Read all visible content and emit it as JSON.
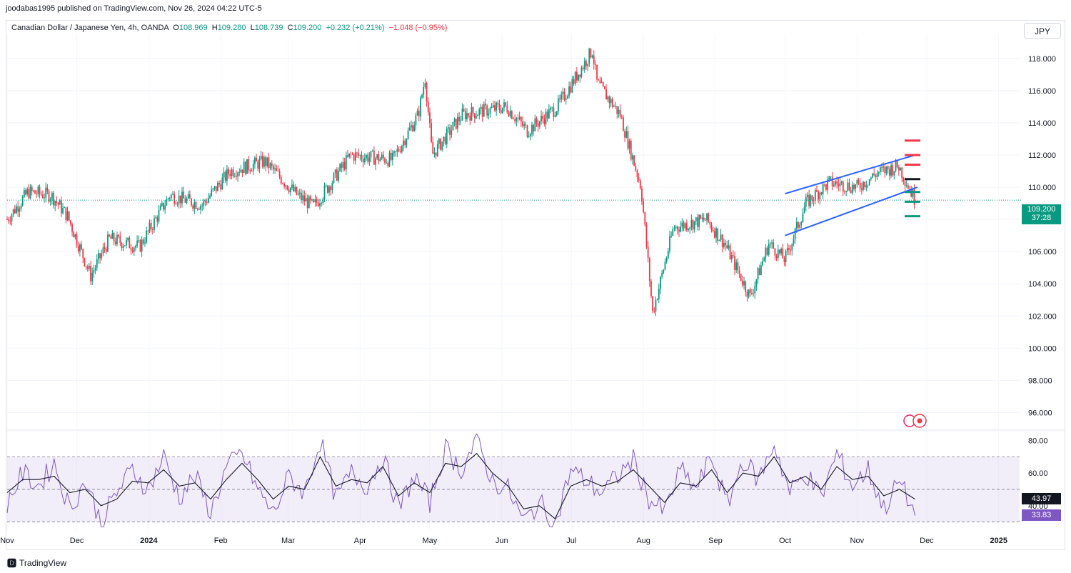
{
  "header": {
    "published_line": "joodabas1995 published on TradingView.com, Nov 26, 2024 04:22 UTC-5"
  },
  "legend": {
    "symbol": "Canadian Dollar / Japanese Yen, 4h, OANDA",
    "o_label": "O",
    "o_value": "108.969",
    "h_label": "H",
    "h_value": "109.280",
    "l_label": "L",
    "l_value": "108.739",
    "c_label": "C",
    "c_value": "109.200",
    "change": "+0.232 (+0.21%)",
    "extra_change": "−1.048 (−0.95%)"
  },
  "toolbar": {
    "currency": "JPY"
  },
  "price_label": {
    "value": "109.200",
    "countdown": "37:28"
  },
  "rsi_labels": {
    "ma_value": "43.97",
    "rsi_value": "33.83"
  },
  "brand": {
    "name": "TradingView"
  },
  "colors": {
    "up": "#089981",
    "down": "#f23645",
    "channel": "#2962ff",
    "rsi_line": "#7e57c2",
    "rsi_ma": "#131722",
    "rsi_band": "#7e57c2",
    "last_price": "#089981"
  },
  "chart_data": [
    {
      "type": "candlestick",
      "title": "",
      "y_axis_side": "right",
      "ylim": [
        95,
        119.5
      ],
      "yticks": [
        "96.000",
        "98.000",
        "100.000",
        "102.000",
        "104.000",
        "106.000",
        "108.000",
        "110.000",
        "112.000",
        "114.000",
        "116.000",
        "118.000"
      ],
      "x_axis_labels": [
        "Nov",
        "Dec",
        "2024",
        "Feb",
        "Mar",
        "Apr",
        "May",
        "Jun",
        "Jul",
        "Aug",
        "Sep",
        "Oct",
        "Nov",
        "Dec",
        "2025"
      ],
      "x_range": [
        "2023-11-01",
        "2025-01-10"
      ],
      "price_path": [
        {
          "date": "2023-11-01",
          "value": 108.0
        },
        {
          "date": "2023-11-10",
          "value": 109.7
        },
        {
          "date": "2023-11-20",
          "value": 109.5
        },
        {
          "date": "2023-11-27",
          "value": 108.2
        },
        {
          "date": "2023-12-07",
          "value": 104.5
        },
        {
          "date": "2023-12-15",
          "value": 106.8
        },
        {
          "date": "2023-12-28",
          "value": 106.3
        },
        {
          "date": "2024-01-10",
          "value": 109.5
        },
        {
          "date": "2024-01-24",
          "value": 108.9
        },
        {
          "date": "2024-02-05",
          "value": 111.0
        },
        {
          "date": "2024-02-20",
          "value": 111.6
        },
        {
          "date": "2024-03-05",
          "value": 109.5
        },
        {
          "date": "2024-03-12",
          "value": 108.8
        },
        {
          "date": "2024-03-28",
          "value": 112.0
        },
        {
          "date": "2024-04-15",
          "value": 111.7
        },
        {
          "date": "2024-04-26",
          "value": 114.5
        },
        {
          "date": "2024-04-29",
          "value": 116.8
        },
        {
          "date": "2024-05-02",
          "value": 112.0
        },
        {
          "date": "2024-05-15",
          "value": 114.5
        },
        {
          "date": "2024-06-03",
          "value": 115.0
        },
        {
          "date": "2024-06-12",
          "value": 113.5
        },
        {
          "date": "2024-06-25",
          "value": 115.0
        },
        {
          "date": "2024-07-10",
          "value": 118.5
        },
        {
          "date": "2024-07-12",
          "value": 116.5
        },
        {
          "date": "2024-07-22",
          "value": 114.5
        },
        {
          "date": "2024-07-31",
          "value": 110.0
        },
        {
          "date": "2024-08-05",
          "value": 102.2
        },
        {
          "date": "2024-08-14",
          "value": 107.5
        },
        {
          "date": "2024-08-28",
          "value": 108.0
        },
        {
          "date": "2024-09-05",
          "value": 106.5
        },
        {
          "date": "2024-09-16",
          "value": 103.2
        },
        {
          "date": "2024-09-24",
          "value": 106.5
        },
        {
          "date": "2024-10-01",
          "value": 105.5
        },
        {
          "date": "2024-10-10",
          "value": 109.0
        },
        {
          "date": "2024-10-20",
          "value": 110.3
        },
        {
          "date": "2024-11-01",
          "value": 110.0
        },
        {
          "date": "2024-11-10",
          "value": 110.9
        },
        {
          "date": "2024-11-19",
          "value": 111.3
        },
        {
          "date": "2024-11-26",
          "value": 109.2
        }
      ],
      "channel": {
        "upper": [
          {
            "date": "2024-10-01",
            "value": 109.6
          },
          {
            "date": "2024-11-26",
            "value": 112.0
          }
        ],
        "lower": [
          {
            "date": "2024-10-01",
            "value": 107.0
          },
          {
            "date": "2024-11-27",
            "value": 110.0
          }
        ]
      },
      "levels": [
        {
          "value": 112.9,
          "color": "#f23645"
        },
        {
          "value": 112.0,
          "color": "#f23645"
        },
        {
          "value": 111.4,
          "color": "#f23645"
        },
        {
          "value": 110.5,
          "color": "#131722"
        },
        {
          "value": 109.7,
          "color": "#089981"
        },
        {
          "value": 109.1,
          "color": "#089981"
        },
        {
          "value": 108.2,
          "color": "#089981"
        }
      ],
      "last_price": 109.2
    },
    {
      "type": "line",
      "title": "",
      "indicator": "RSI",
      "ylim": [
        25,
        85
      ],
      "yticks": [
        "40.00",
        "60.00",
        "80.00"
      ],
      "band": [
        30,
        70
      ],
      "midline": 50,
      "series": [
        {
          "key": "rsi",
          "values": [
            42,
            60,
            52,
            66,
            38,
            55,
            30,
            48,
            62,
            50,
            70,
            45,
            58,
            36,
            63,
            72,
            50,
            35,
            58,
            48,
            80,
            44,
            60,
            52,
            70,
            38,
            58,
            42,
            75,
            62,
            80,
            55,
            50,
            30,
            42,
            28,
            62,
            55,
            48,
            58,
            68,
            44,
            36,
            62,
            50,
            70,
            40,
            68,
            56,
            78,
            48,
            60,
            45,
            72,
            52,
            62,
            38,
            55,
            33.83
          ]
        },
        {
          "key": "rsi_ma",
          "values": [
            48,
            56,
            56,
            58,
            48,
            50,
            40,
            44,
            55,
            54,
            62,
            52,
            54,
            44,
            56,
            66,
            56,
            44,
            52,
            50,
            70,
            52,
            56,
            54,
            64,
            46,
            54,
            48,
            66,
            64,
            72,
            60,
            52,
            38,
            40,
            32,
            52,
            56,
            52,
            55,
            62,
            52,
            42,
            54,
            52,
            62,
            48,
            60,
            58,
            70,
            54,
            58,
            50,
            64,
            56,
            58,
            46,
            50,
            43.97
          ]
        }
      ]
    }
  ]
}
